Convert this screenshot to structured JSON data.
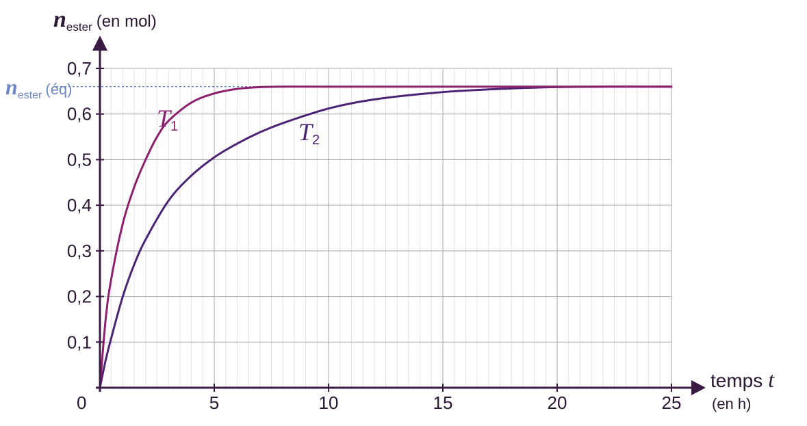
{
  "chart_data": {
    "type": "line",
    "y_axis": {
      "symbol": "n",
      "subscript": "ester",
      "unit": "(en mol)",
      "ylim": [
        0,
        0.7
      ],
      "ticks": [
        0.1,
        0.2,
        0.3,
        0.4,
        0.5,
        0.6,
        0.7
      ],
      "tick_labels": [
        "0,1",
        "0,2",
        "0,3",
        "0,4",
        "0,5",
        "0,6",
        "0,7"
      ]
    },
    "x_axis": {
      "word": "temps",
      "symbol": "t",
      "unit": "(en h)",
      "xlim": [
        0,
        25
      ],
      "ticks": [
        5,
        10,
        15,
        20,
        25
      ],
      "tick_labels": [
        "5",
        "10",
        "15",
        "20",
        "25"
      ]
    },
    "origin_label": "0",
    "grid": {
      "major_x": 5,
      "major_y": 0.1,
      "minor_x": 0.5
    },
    "equilibrium": {
      "value": 0.66,
      "label_symbol": "n",
      "label_subscript": "ester",
      "label_suffix": "(éq)",
      "color": "#6f86c4"
    },
    "series": [
      {
        "name": "T",
        "index": "1",
        "color": "#8e1f6d",
        "points": [
          [
            0,
            0
          ],
          [
            0.25,
            0.15
          ],
          [
            0.5,
            0.24
          ],
          [
            1,
            0.36
          ],
          [
            1.5,
            0.44
          ],
          [
            2,
            0.5
          ],
          [
            2.5,
            0.55
          ],
          [
            3,
            0.585
          ],
          [
            4,
            0.625
          ],
          [
            5,
            0.645
          ],
          [
            6,
            0.655
          ],
          [
            7,
            0.659
          ],
          [
            8,
            0.66
          ],
          [
            10,
            0.66
          ],
          [
            15,
            0.66
          ],
          [
            20,
            0.66
          ],
          [
            25,
            0.66
          ]
        ]
      },
      {
        "name": "T",
        "index": "2",
        "color": "#4b2375",
        "points": [
          [
            0,
            0
          ],
          [
            0.25,
            0.06
          ],
          [
            0.5,
            0.11
          ],
          [
            1,
            0.2
          ],
          [
            1.5,
            0.27
          ],
          [
            2,
            0.325
          ],
          [
            3,
            0.41
          ],
          [
            4,
            0.465
          ],
          [
            5,
            0.505
          ],
          [
            6,
            0.535
          ],
          [
            7,
            0.56
          ],
          [
            8,
            0.58
          ],
          [
            10,
            0.612
          ],
          [
            12,
            0.632
          ],
          [
            15,
            0.648
          ],
          [
            18,
            0.656
          ],
          [
            20,
            0.659
          ],
          [
            22,
            0.66
          ],
          [
            25,
            0.66
          ]
        ]
      }
    ],
    "axis_color": "#3a1a45"
  }
}
